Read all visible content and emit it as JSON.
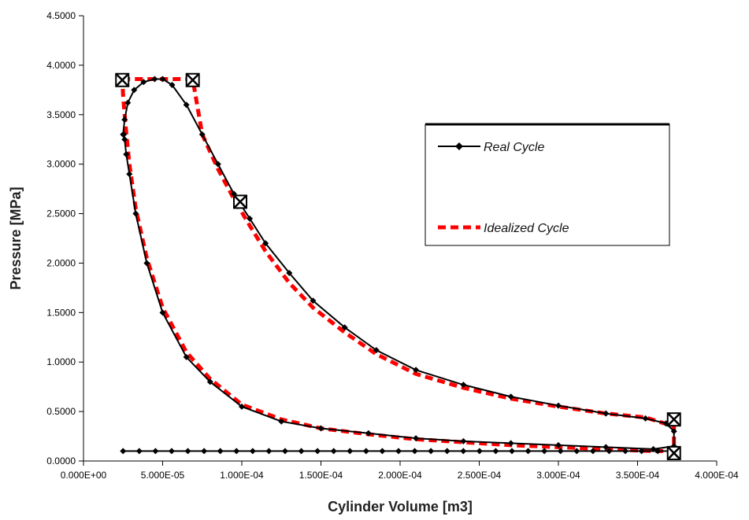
{
  "chart_data": {
    "type": "line",
    "xlabel": "Cylinder Volume   [m3]",
    "ylabel": "Pressure   [MPa]",
    "xlim": [
      0,
      0.0004
    ],
    "ylim": [
      0,
      4.5
    ],
    "x_ticks": [
      0,
      5e-05,
      0.0001,
      0.00015,
      0.0002,
      0.00025,
      0.0003,
      0.00035,
      0.0004
    ],
    "x_tick_labels": [
      "0.000E+00",
      "5.000E-05",
      "1.000E-04",
      "1.500E-04",
      "2.000E-04",
      "2.500E-04",
      "3.000E-04",
      "3.500E-04",
      "4.000E-04"
    ],
    "y_ticks": [
      0,
      0.5,
      1.0,
      1.5,
      2.0,
      2.5,
      3.0,
      3.5,
      4.0,
      4.5
    ],
    "y_tick_labels": [
      "0.0000",
      "0.5000",
      "1.0000",
      "1.5000",
      "2.0000",
      "2.5000",
      "3.0000",
      "3.5000",
      "4.0000",
      "4.5000"
    ],
    "grid": false,
    "legend_position": "right",
    "colors": {
      "real": "#000000",
      "ideal": "#ff0000"
    },
    "series": [
      {
        "name": "Real Cycle",
        "style": "solid-diamond",
        "x": [
          2.5e-05,
          2.6e-05,
          2.8e-05,
          3.2e-05,
          3.8e-05,
          4.5e-05,
          5e-05,
          5.6e-05,
          6.5e-05,
          7.5e-05,
          8.5e-05,
          9.5e-05,
          0.000105,
          0.000115,
          0.00013,
          0.000145,
          0.000165,
          0.000185,
          0.00021,
          0.00024,
          0.00027,
          0.0003,
          0.00033,
          0.000355,
          0.000368,
          0.000373,
          0.000373,
          0.00036,
          0.00033,
          0.0003,
          0.00027,
          0.00024,
          0.00021,
          0.00018,
          0.00015,
          0.000125,
          0.0001,
          8e-05,
          6.5e-05,
          5e-05,
          4e-05,
          3.3e-05,
          2.9e-05,
          2.7e-05,
          2.6e-05,
          2.55e-05
        ],
        "y": [
          3.3,
          3.45,
          3.62,
          3.75,
          3.83,
          3.86,
          3.86,
          3.8,
          3.6,
          3.3,
          3.0,
          2.7,
          2.45,
          2.2,
          1.9,
          1.62,
          1.35,
          1.12,
          0.92,
          0.77,
          0.65,
          0.56,
          0.48,
          0.43,
          0.38,
          0.3,
          0.15,
          0.12,
          0.14,
          0.16,
          0.18,
          0.2,
          0.23,
          0.28,
          0.33,
          0.4,
          0.55,
          0.8,
          1.05,
          1.5,
          2.0,
          2.5,
          2.9,
          3.1,
          3.25,
          3.3
        ]
      },
      {
        "name": "Idealized Cycle",
        "style": "dashed",
        "x": [
          2.45e-05,
          6.9e-05,
          7.5e-05,
          8.5e-05,
          9.5e-05,
          0.000105,
          0.000115,
          0.00013,
          0.000145,
          0.000165,
          0.000185,
          0.00021,
          0.00024,
          0.00027,
          0.0003,
          0.00033,
          0.000355,
          0.000373,
          0.000373,
          0.00036,
          0.00033,
          0.0003,
          0.00027,
          0.00024,
          0.00021,
          0.00018,
          0.00015,
          0.000125,
          0.0001,
          8e-05,
          6.5e-05,
          5e-05,
          4e-05,
          3.3e-05,
          2.9e-05,
          2.65e-05,
          2.5e-05,
          2.45e-05
        ],
        "y": [
          3.86,
          3.86,
          3.3,
          2.95,
          2.65,
          2.38,
          2.12,
          1.8,
          1.55,
          1.3,
          1.08,
          0.88,
          0.74,
          0.63,
          0.55,
          0.48,
          0.44,
          0.35,
          0.1,
          0.1,
          0.12,
          0.14,
          0.16,
          0.19,
          0.22,
          0.27,
          0.33,
          0.42,
          0.57,
          0.83,
          1.1,
          1.55,
          2.05,
          2.55,
          3.0,
          3.4,
          3.7,
          3.86
        ]
      }
    ],
    "markers": {
      "style": "x-box",
      "x": [
        2.45e-05,
        6.9e-05,
        9.9e-05,
        0.000373,
        0.000373
      ],
      "y": [
        3.85,
        3.85,
        2.62,
        0.42,
        0.08
      ]
    },
    "baseline": {
      "style": "solid-diamond",
      "x_start": 2.5e-05,
      "x_end": 0.000373,
      "y_start": 0.1,
      "y_end": 0.1
    }
  }
}
